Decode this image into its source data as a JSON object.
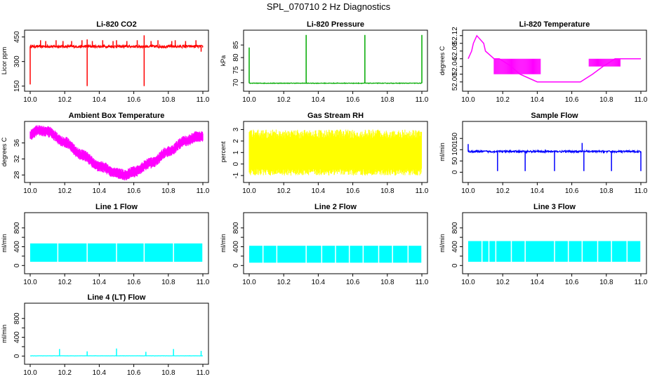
{
  "title": "SPL_070710  2 Hz Diagnostics",
  "chart_data": [
    {
      "id": "co2",
      "type": "line",
      "title": "Li-820 CO2",
      "ylabel": "Licor ppm",
      "color": "#ff0000",
      "xlim": [
        10.0,
        11.0
      ],
      "ylim": [
        140,
        470
      ],
      "xticks": [
        10.0,
        10.2,
        10.4,
        10.6,
        10.8,
        11.0
      ],
      "xtick_labels": [
        "10.0",
        "10.2",
        "10.4",
        "10.6",
        "10.8",
        "11.0"
      ],
      "yticks": [
        150,
        300,
        450
      ],
      "ytick_labels": [
        "150",
        "300",
        "450"
      ],
      "baseline": 392,
      "noise": 8,
      "spikes": [
        [
          10.0,
          160
        ],
        [
          10.06,
          430
        ],
        [
          10.09,
          425
        ],
        [
          10.15,
          430
        ],
        [
          10.19,
          425
        ],
        [
          10.24,
          425
        ],
        [
          10.3,
          430
        ],
        [
          10.33,
          150
        ],
        [
          10.33,
          435
        ],
        [
          10.36,
          425
        ],
        [
          10.42,
          430
        ],
        [
          10.48,
          425
        ],
        [
          10.5,
          430
        ],
        [
          10.56,
          425
        ],
        [
          10.62,
          430
        ],
        [
          10.66,
          460
        ],
        [
          10.66,
          150
        ],
        [
          10.7,
          425
        ],
        [
          10.74,
          430
        ],
        [
          10.82,
          425
        ],
        [
          10.84,
          430
        ],
        [
          10.9,
          425
        ],
        [
          10.96,
          430
        ],
        [
          10.99,
          360
        ]
      ]
    },
    {
      "id": "pressure",
      "type": "line",
      "title": "Li-820 Pressure",
      "ylabel": "kPa",
      "color": "#00aa00",
      "xlim": [
        10.0,
        11.0
      ],
      "ylim": [
        68.0,
        89.5
      ],
      "xticks": [
        10.0,
        10.2,
        10.4,
        10.6,
        10.8,
        11.0
      ],
      "xtick_labels": [
        "10.0",
        "10.2",
        "10.4",
        "10.6",
        "10.8",
        "11.0"
      ],
      "yticks": [
        70,
        75,
        80,
        85
      ],
      "ytick_labels": [
        "70",
        "75",
        "80",
        "85"
      ],
      "baseline": 69.8,
      "noise": 0.1,
      "spikes": [
        [
          10.0,
          84
        ],
        [
          10.33,
          89
        ],
        [
          10.67,
          89
        ],
        [
          11.0,
          89
        ]
      ]
    },
    {
      "id": "temperature",
      "type": "step",
      "title": "Li-820 Temperature",
      "ylabel": "degrees C",
      "color": "#ff00ff",
      "xlim": [
        10.0,
        11.0
      ],
      "ylim": [
        51.985,
        52.125
      ],
      "xticks": [
        10.0,
        10.2,
        10.4,
        10.6,
        10.8,
        11.0
      ],
      "xtick_labels": [
        "10.0",
        "10.2",
        "10.4",
        "10.6",
        "10.8",
        "11.0"
      ],
      "yticks": [
        52.0,
        52.04,
        52.08,
        52.12
      ],
      "ytick_labels": [
        "52.00",
        "52.04",
        "52.08",
        "52.12"
      ],
      "y_minor_ticks": [
        52.02,
        52.06,
        52.1
      ],
      "points": [
        [
          10.0,
          52.06
        ],
        [
          10.02,
          52.08
        ],
        [
          10.03,
          52.1
        ],
        [
          10.05,
          52.12
        ],
        [
          10.09,
          52.1
        ],
        [
          10.1,
          52.08
        ],
        [
          10.15,
          52.06
        ],
        [
          10.18,
          52.06
        ],
        [
          10.25,
          52.04
        ],
        [
          10.3,
          52.02
        ],
        [
          10.4,
          52.0
        ],
        [
          10.6,
          52.0
        ],
        [
          10.65,
          52.0
        ],
        [
          10.72,
          52.02
        ],
        [
          10.78,
          52.04
        ],
        [
          10.85,
          52.06
        ],
        [
          11.0,
          52.06
        ]
      ],
      "oscillation_ranges": [
        [
          10.15,
          10.42,
          52.02,
          52.06
        ],
        [
          10.7,
          10.88,
          52.04,
          52.06
        ]
      ]
    },
    {
      "id": "ambient",
      "type": "line",
      "title": "Ambient Box Temperature",
      "ylabel": "degrees C",
      "color": "#ff00ff",
      "xlim": [
        10.0,
        11.0
      ],
      "ylim": [
        27.0,
        40.5
      ],
      "xticks": [
        10.0,
        10.2,
        10.4,
        10.6,
        10.8,
        11.0
      ],
      "xtick_labels": [
        "10.0",
        "10.2",
        "10.4",
        "10.6",
        "10.8",
        "11.0"
      ],
      "yticks": [
        28,
        32,
        36
      ],
      "ytick_labels": [
        "28",
        "32",
        "36"
      ],
      "curve": [
        [
          10.0,
          38.0
        ],
        [
          10.05,
          39.2
        ],
        [
          10.1,
          38.8
        ],
        [
          10.2,
          36.2
        ],
        [
          10.3,
          33.0
        ],
        [
          10.4,
          30.2
        ],
        [
          10.5,
          28.5
        ],
        [
          10.55,
          28.0
        ],
        [
          10.6,
          28.8
        ],
        [
          10.7,
          31.0
        ],
        [
          10.8,
          33.8
        ],
        [
          10.9,
          36.5
        ],
        [
          10.97,
          37.6
        ],
        [
          11.0,
          37.5
        ]
      ],
      "band": 1.0
    },
    {
      "id": "rh",
      "type": "line",
      "title": "Gas Stream RH",
      "ylabel": "percent",
      "color": "#ffff00",
      "xlim": [
        10.0,
        11.0
      ],
      "ylim": [
        -1.3,
        3.4
      ],
      "xticks": [
        10.0,
        10.2,
        10.4,
        10.6,
        10.8,
        11.0
      ],
      "xtick_labels": [
        "10.0",
        "10.2",
        "10.4",
        "10.6",
        "10.8",
        "11.0"
      ],
      "yticks": [
        -1,
        0,
        1,
        2,
        3
      ],
      "ytick_labels": [
        "-1",
        "0",
        "1",
        "2",
        "3"
      ],
      "band_low": -0.8,
      "band_high": 2.8
    },
    {
      "id": "sample",
      "type": "line",
      "title": "Sample Flow",
      "ylabel": "ml/min",
      "color": "#0000ff",
      "xlim": [
        10.0,
        11.0
      ],
      "ylim": [
        -30,
        210
      ],
      "xticks": [
        10.0,
        10.2,
        10.4,
        10.6,
        10.8,
        11.0
      ],
      "xtick_labels": [
        "10.0",
        "10.2",
        "10.4",
        "10.6",
        "10.8",
        "11.0"
      ],
      "yticks": [
        0,
        50,
        100,
        150
      ],
      "ytick_labels": [
        "0",
        "50",
        "100",
        "150"
      ],
      "baseline": 92,
      "noise": 4,
      "spikes": [
        [
          10.0,
          125
        ],
        [
          10.17,
          5
        ],
        [
          10.33,
          5
        ],
        [
          10.5,
          5
        ],
        [
          10.66,
          130
        ],
        [
          10.67,
          5
        ],
        [
          10.83,
          5
        ],
        [
          11.0,
          5
        ]
      ]
    },
    {
      "id": "line1",
      "type": "line",
      "title": "Line 1 Flow",
      "ylabel": "ml/min",
      "color": "#00ffff",
      "xlim": [
        10.0,
        11.0
      ],
      "ylim": [
        -100,
        1050
      ],
      "xticks": [
        10.0,
        10.2,
        10.4,
        10.6,
        10.8,
        11.0
      ],
      "xtick_labels": [
        "10.0",
        "10.2",
        "10.4",
        "10.6",
        "10.8",
        "11.0"
      ],
      "yticks": [
        0,
        400,
        800
      ],
      "ytick_labels": [
        "0",
        "400",
        "800"
      ],
      "y_minor_ticks": [
        200,
        600
      ],
      "band_low": 80,
      "band_high": 470,
      "gaps": [
        10.16,
        10.33,
        10.5,
        10.66,
        10.83,
        11.0
      ]
    },
    {
      "id": "line2",
      "type": "line",
      "title": "Line 2 Flow",
      "ylabel": "ml/min",
      "color": "#00ffff",
      "xlim": [
        10.0,
        11.0
      ],
      "ylim": [
        -100,
        1050
      ],
      "xticks": [
        10.0,
        10.2,
        10.4,
        10.6,
        10.8,
        11.0
      ],
      "xtick_labels": [
        "10.0",
        "10.2",
        "10.4",
        "10.6",
        "10.8",
        "11.0"
      ],
      "yticks": [
        0,
        400,
        800
      ],
      "ytick_labels": [
        "0",
        "400",
        "800"
      ],
      "y_minor_ticks": [
        200,
        600
      ],
      "band_low": 60,
      "band_high": 420,
      "gaps": [
        10.08,
        10.16,
        10.33,
        10.42,
        10.5,
        10.58,
        10.66,
        10.75,
        10.83,
        10.92,
        11.0
      ]
    },
    {
      "id": "line3",
      "type": "line",
      "title": "Line 3 Flow",
      "ylabel": "ml/min",
      "color": "#00ffff",
      "xlim": [
        10.0,
        11.0
      ],
      "ylim": [
        -100,
        1050
      ],
      "xticks": [
        10.0,
        10.2,
        10.4,
        10.6,
        10.8,
        11.0
      ],
      "xtick_labels": [
        "10.0",
        "10.2",
        "10.4",
        "10.6",
        "10.8",
        "11.0"
      ],
      "yticks": [
        0,
        400,
        800
      ],
      "ytick_labels": [
        "0",
        "400",
        "800"
      ],
      "y_minor_ticks": [
        200,
        600
      ],
      "band_low": 80,
      "band_high": 520,
      "gaps": [
        10.08,
        10.12,
        10.16,
        10.25,
        10.33,
        10.5,
        10.58,
        10.66,
        10.75,
        10.83,
        10.92,
        11.0
      ]
    },
    {
      "id": "line4",
      "type": "line",
      "title": "Line 4 (LT) Flow",
      "ylabel": "ml/min",
      "color": "#00ffff",
      "xlim": [
        10.0,
        11.0
      ],
      "ylim": [
        -100,
        1050
      ],
      "xticks": [
        10.0,
        10.2,
        10.4,
        10.6,
        10.8,
        11.0
      ],
      "xtick_labels": [
        "10.0",
        "10.2",
        "10.4",
        "10.6",
        "10.8",
        "11.0"
      ],
      "yticks": [
        0,
        400,
        800
      ],
      "ytick_labels": [
        "0",
        "400",
        "800"
      ],
      "y_minor_ticks": [
        200,
        600
      ],
      "baseline": 5,
      "noise": 2,
      "spikes": [
        [
          10.17,
          150
        ],
        [
          10.33,
          100
        ],
        [
          10.5,
          160
        ],
        [
          10.67,
          90
        ],
        [
          10.83,
          150
        ],
        [
          10.99,
          110
        ]
      ]
    }
  ]
}
